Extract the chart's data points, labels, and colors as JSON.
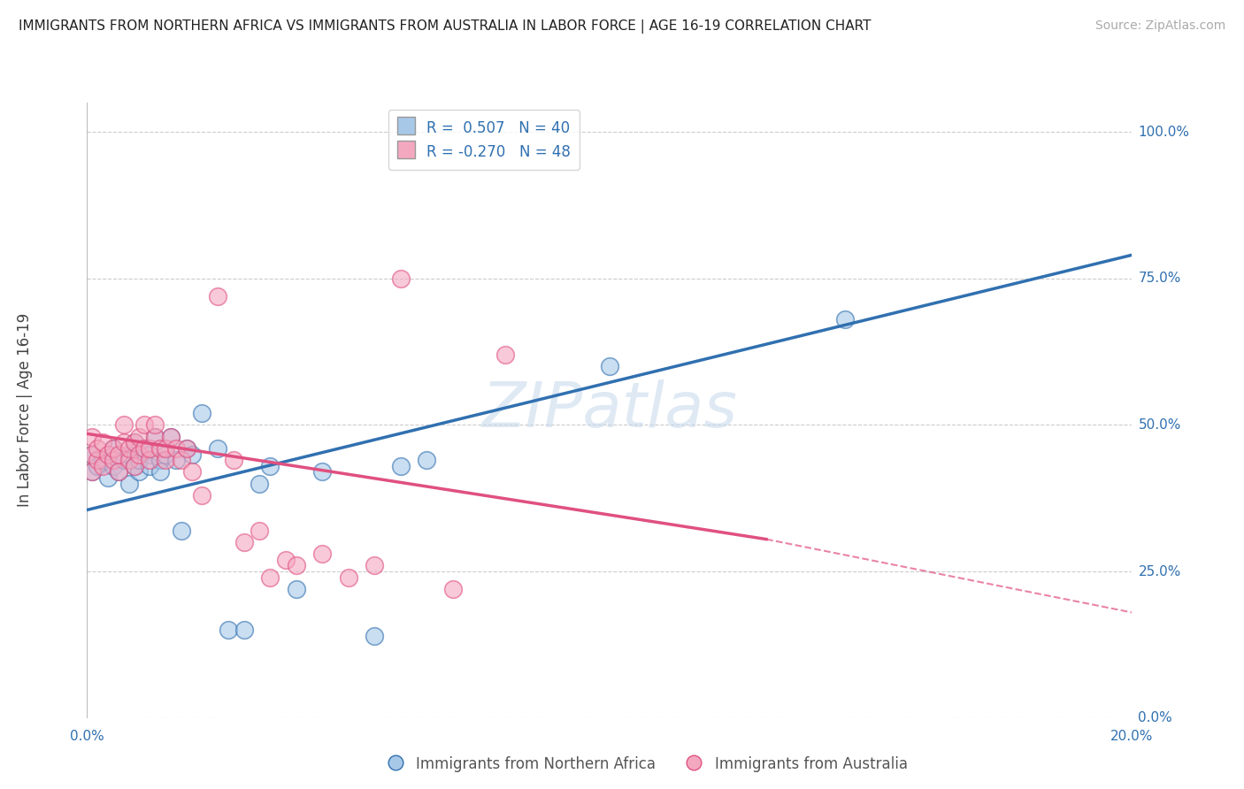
{
  "title": "IMMIGRANTS FROM NORTHERN AFRICA VS IMMIGRANTS FROM AUSTRALIA IN LABOR FORCE | AGE 16-19 CORRELATION CHART",
  "source": "Source: ZipAtlas.com",
  "ylabel": "In Labor Force | Age 16-19",
  "watermark": "ZIPatlas",
  "xlim": [
    0.0,
    0.2
  ],
  "ylim": [
    0.0,
    1.05
  ],
  "ytick_labels": [
    "0.0%",
    "25.0%",
    "50.0%",
    "75.0%",
    "100.0%"
  ],
  "ytick_vals": [
    0.0,
    0.25,
    0.5,
    0.75,
    1.0
  ],
  "xtick_labels": [
    "0.0%",
    "20.0%"
  ],
  "xtick_vals": [
    0.0,
    0.2
  ],
  "legend_R1": "R =  0.507",
  "legend_N1": "N = 40",
  "legend_R2": "R = -0.270",
  "legend_N2": "N = 48",
  "color_blue": "#a8c8e8",
  "color_pink": "#f4a8c0",
  "color_blue_dark": "#3070b0",
  "color_pink_dark": "#e05080",
  "background_color": "#ffffff",
  "grid_color": "#cccccc",
  "scatter_blue": {
    "x": [
      0.001,
      0.001,
      0.002,
      0.003,
      0.004,
      0.005,
      0.005,
      0.006,
      0.007,
      0.008,
      0.008,
      0.009,
      0.009,
      0.01,
      0.01,
      0.011,
      0.012,
      0.012,
      0.013,
      0.014,
      0.014,
      0.015,
      0.016,
      0.017,
      0.018,
      0.019,
      0.02,
      0.022,
      0.025,
      0.027,
      0.03,
      0.033,
      0.035,
      0.04,
      0.045,
      0.055,
      0.06,
      0.065,
      0.1,
      0.145
    ],
    "y": [
      0.42,
      0.45,
      0.43,
      0.44,
      0.41,
      0.43,
      0.46,
      0.42,
      0.44,
      0.4,
      0.45,
      0.43,
      0.47,
      0.42,
      0.44,
      0.46,
      0.45,
      0.43,
      0.48,
      0.44,
      0.42,
      0.45,
      0.48,
      0.44,
      0.32,
      0.46,
      0.45,
      0.52,
      0.46,
      0.15,
      0.15,
      0.4,
      0.43,
      0.22,
      0.42,
      0.14,
      0.43,
      0.44,
      0.6,
      0.68
    ]
  },
  "scatter_pink": {
    "x": [
      0.001,
      0.001,
      0.001,
      0.002,
      0.002,
      0.003,
      0.003,
      0.004,
      0.005,
      0.005,
      0.006,
      0.006,
      0.007,
      0.007,
      0.008,
      0.008,
      0.009,
      0.009,
      0.01,
      0.01,
      0.011,
      0.011,
      0.012,
      0.012,
      0.013,
      0.013,
      0.014,
      0.015,
      0.015,
      0.016,
      0.017,
      0.018,
      0.019,
      0.02,
      0.022,
      0.025,
      0.028,
      0.03,
      0.033,
      0.035,
      0.038,
      0.04,
      0.045,
      0.05,
      0.055,
      0.06,
      0.07,
      0.08
    ],
    "y": [
      0.42,
      0.45,
      0.48,
      0.44,
      0.46,
      0.43,
      0.47,
      0.45,
      0.44,
      0.46,
      0.42,
      0.45,
      0.47,
      0.5,
      0.44,
      0.46,
      0.43,
      0.47,
      0.45,
      0.48,
      0.46,
      0.5,
      0.44,
      0.46,
      0.48,
      0.5,
      0.46,
      0.44,
      0.46,
      0.48,
      0.46,
      0.44,
      0.46,
      0.42,
      0.38,
      0.72,
      0.44,
      0.3,
      0.32,
      0.24,
      0.27,
      0.26,
      0.28,
      0.24,
      0.26,
      0.75,
      0.22,
      0.62
    ]
  },
  "blue_line": {
    "x0": 0.0,
    "x1": 0.2,
    "y0": 0.355,
    "y1": 0.79
  },
  "pink_line_solid": {
    "x0": 0.0,
    "x1": 0.13,
    "y0": 0.485,
    "y1": 0.305
  },
  "pink_line_dashed": {
    "x0": 0.13,
    "x1": 0.2,
    "y0": 0.305,
    "y1": 0.18
  }
}
